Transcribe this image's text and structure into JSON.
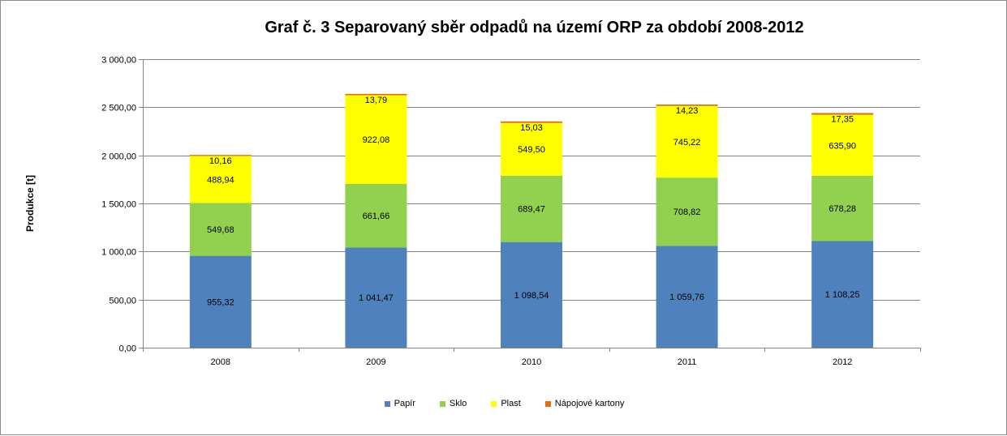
{
  "chart_data": {
    "type": "bar",
    "stacked": true,
    "title": "Graf č. 3 Separovaný sběr odpadů na území ORP za období 2008-2012",
    "ylabel": "Produkce [t]",
    "xlabel": "",
    "ylim": [
      0,
      3000
    ],
    "yticks": [
      0,
      500,
      1000,
      1500,
      2000,
      2500,
      3000
    ],
    "ytick_labels": [
      "0,00",
      "500,00",
      "1 000,00",
      "1 500,00",
      "2 000,00",
      "2 500,00",
      "3 000,00"
    ],
    "grid": true,
    "legend_position": "bottom",
    "categories": [
      "2008",
      "2009",
      "2010",
      "2011",
      "2012"
    ],
    "series": [
      {
        "name": "Papír",
        "color": "#4f81bd",
        "values": [
          955.32,
          1041.47,
          1098.54,
          1059.76,
          1108.25
        ],
        "labels": [
          "955,32",
          "1 041,47",
          "1 098,54",
          "1 059,76",
          "1 108,25"
        ]
      },
      {
        "name": "Sklo",
        "color": "#92d050",
        "values": [
          549.68,
          661.66,
          689.47,
          708.82,
          678.28
        ],
        "labels": [
          "549,68",
          "661,66",
          "689,47",
          "708,82",
          "678,28"
        ]
      },
      {
        "name": "Plast",
        "color": "#ffff00",
        "values": [
          488.94,
          922.08,
          549.5,
          745.22,
          635.9
        ],
        "labels": [
          "488,94",
          "922,08",
          "549,50",
          "745,22",
          "635,90"
        ]
      },
      {
        "name": "Nápojové kartony",
        "color": "#e46c0a",
        "values": [
          10.16,
          13.79,
          15.03,
          14.23,
          17.35
        ],
        "labels": [
          "10,16",
          "13,79",
          "15,03",
          "14,23",
          "17,35"
        ]
      }
    ]
  }
}
